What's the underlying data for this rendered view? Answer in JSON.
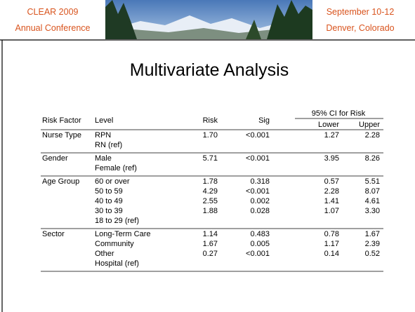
{
  "header": {
    "left": [
      "CLEAR 2009",
      "Annual Conference"
    ],
    "right": [
      "September 10-12",
      "Denver, Colorado"
    ]
  },
  "title": "Multivariate Analysis",
  "table": {
    "columns": [
      "Risk Factor",
      "Level",
      "Risk",
      "Sig",
      "Lower",
      "Upper"
    ],
    "ci_header": "95% CI for Risk",
    "groups": [
      {
        "factor": "Nurse Type",
        "rows": [
          {
            "level": "RPN",
            "risk": "1.70",
            "sig": "<0.001",
            "lower": "1.27",
            "upper": "2.28"
          },
          {
            "level": "RN (ref)"
          }
        ]
      },
      {
        "factor": "Gender",
        "rows": [
          {
            "level": "Male",
            "risk": "5.71",
            "sig": "<0.001",
            "lower": "3.95",
            "upper": "8.26"
          },
          {
            "level": "Female (ref)"
          }
        ]
      },
      {
        "factor": "Age Group",
        "rows": [
          {
            "level": "60 or over",
            "risk": "1.78",
            "sig": "0.318",
            "lower": "0.57",
            "upper": "5.51"
          },
          {
            "level": "50 to 59",
            "risk": "4.29",
            "sig": "<0.001",
            "lower": "2.28",
            "upper": "8.07"
          },
          {
            "level": "40 to 49",
            "risk": "2.55",
            "sig": "0.002",
            "lower": "1.41",
            "upper": "4.61"
          },
          {
            "level": "30 to 39",
            "risk": "1.88",
            "sig": "0.028",
            "lower": "1.07",
            "upper": "3.30"
          },
          {
            "level": "18 to 29 (ref)"
          }
        ]
      },
      {
        "factor": "Sector",
        "rows": [
          {
            "level": "Long-Term Care",
            "risk": "1.14",
            "sig": "0.483",
            "lower": "0.78",
            "upper": "1.67"
          },
          {
            "level": "Community",
            "risk": "1.67",
            "sig": "0.005",
            "lower": "1.17",
            "upper": "2.39"
          },
          {
            "level": "Other",
            "risk": "0.27",
            "sig": "<0.001",
            "lower": "0.14",
            "upper": "0.52"
          },
          {
            "level": "Hospital (ref)"
          }
        ]
      }
    ]
  }
}
